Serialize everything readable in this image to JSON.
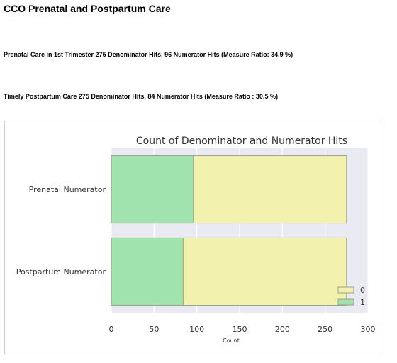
{
  "page": {
    "title": "CCO Prenatal and Postpartum Care"
  },
  "measures": [
    {
      "text": "Prenatal Care in 1st Trimester 275 Denominator Hits, 96 Numerator Hits (Measure Ratio: 34.9 %)"
    },
    {
      "text": "Timely Postpartum Care 275 Denominator Hits, 84 Numerator Hits (Measure Ratio : 30.5 %)"
    }
  ],
  "chart_data": {
    "type": "bar",
    "orientation": "horizontal",
    "stacking": "overlay",
    "title": "Count of Denominator and Numerator Hits",
    "xlabel": "Count",
    "ylabel": "",
    "categories": [
      "Prenatal Numerator",
      "Postpartum Numerator"
    ],
    "series": [
      {
        "name": "0",
        "values": [
          275,
          275
        ],
        "color": "#f2f2ae"
      },
      {
        "name": "1",
        "values": [
          96,
          84
        ],
        "color": "#a1e3ae"
      }
    ],
    "xlim": [
      0,
      300
    ],
    "xticks": [
      0,
      50,
      100,
      150,
      200,
      250,
      300
    ],
    "grid": true,
    "legend_position": "bottom-right",
    "plot_background": "#eaeaf2",
    "edge_color": "#9aa08a"
  }
}
